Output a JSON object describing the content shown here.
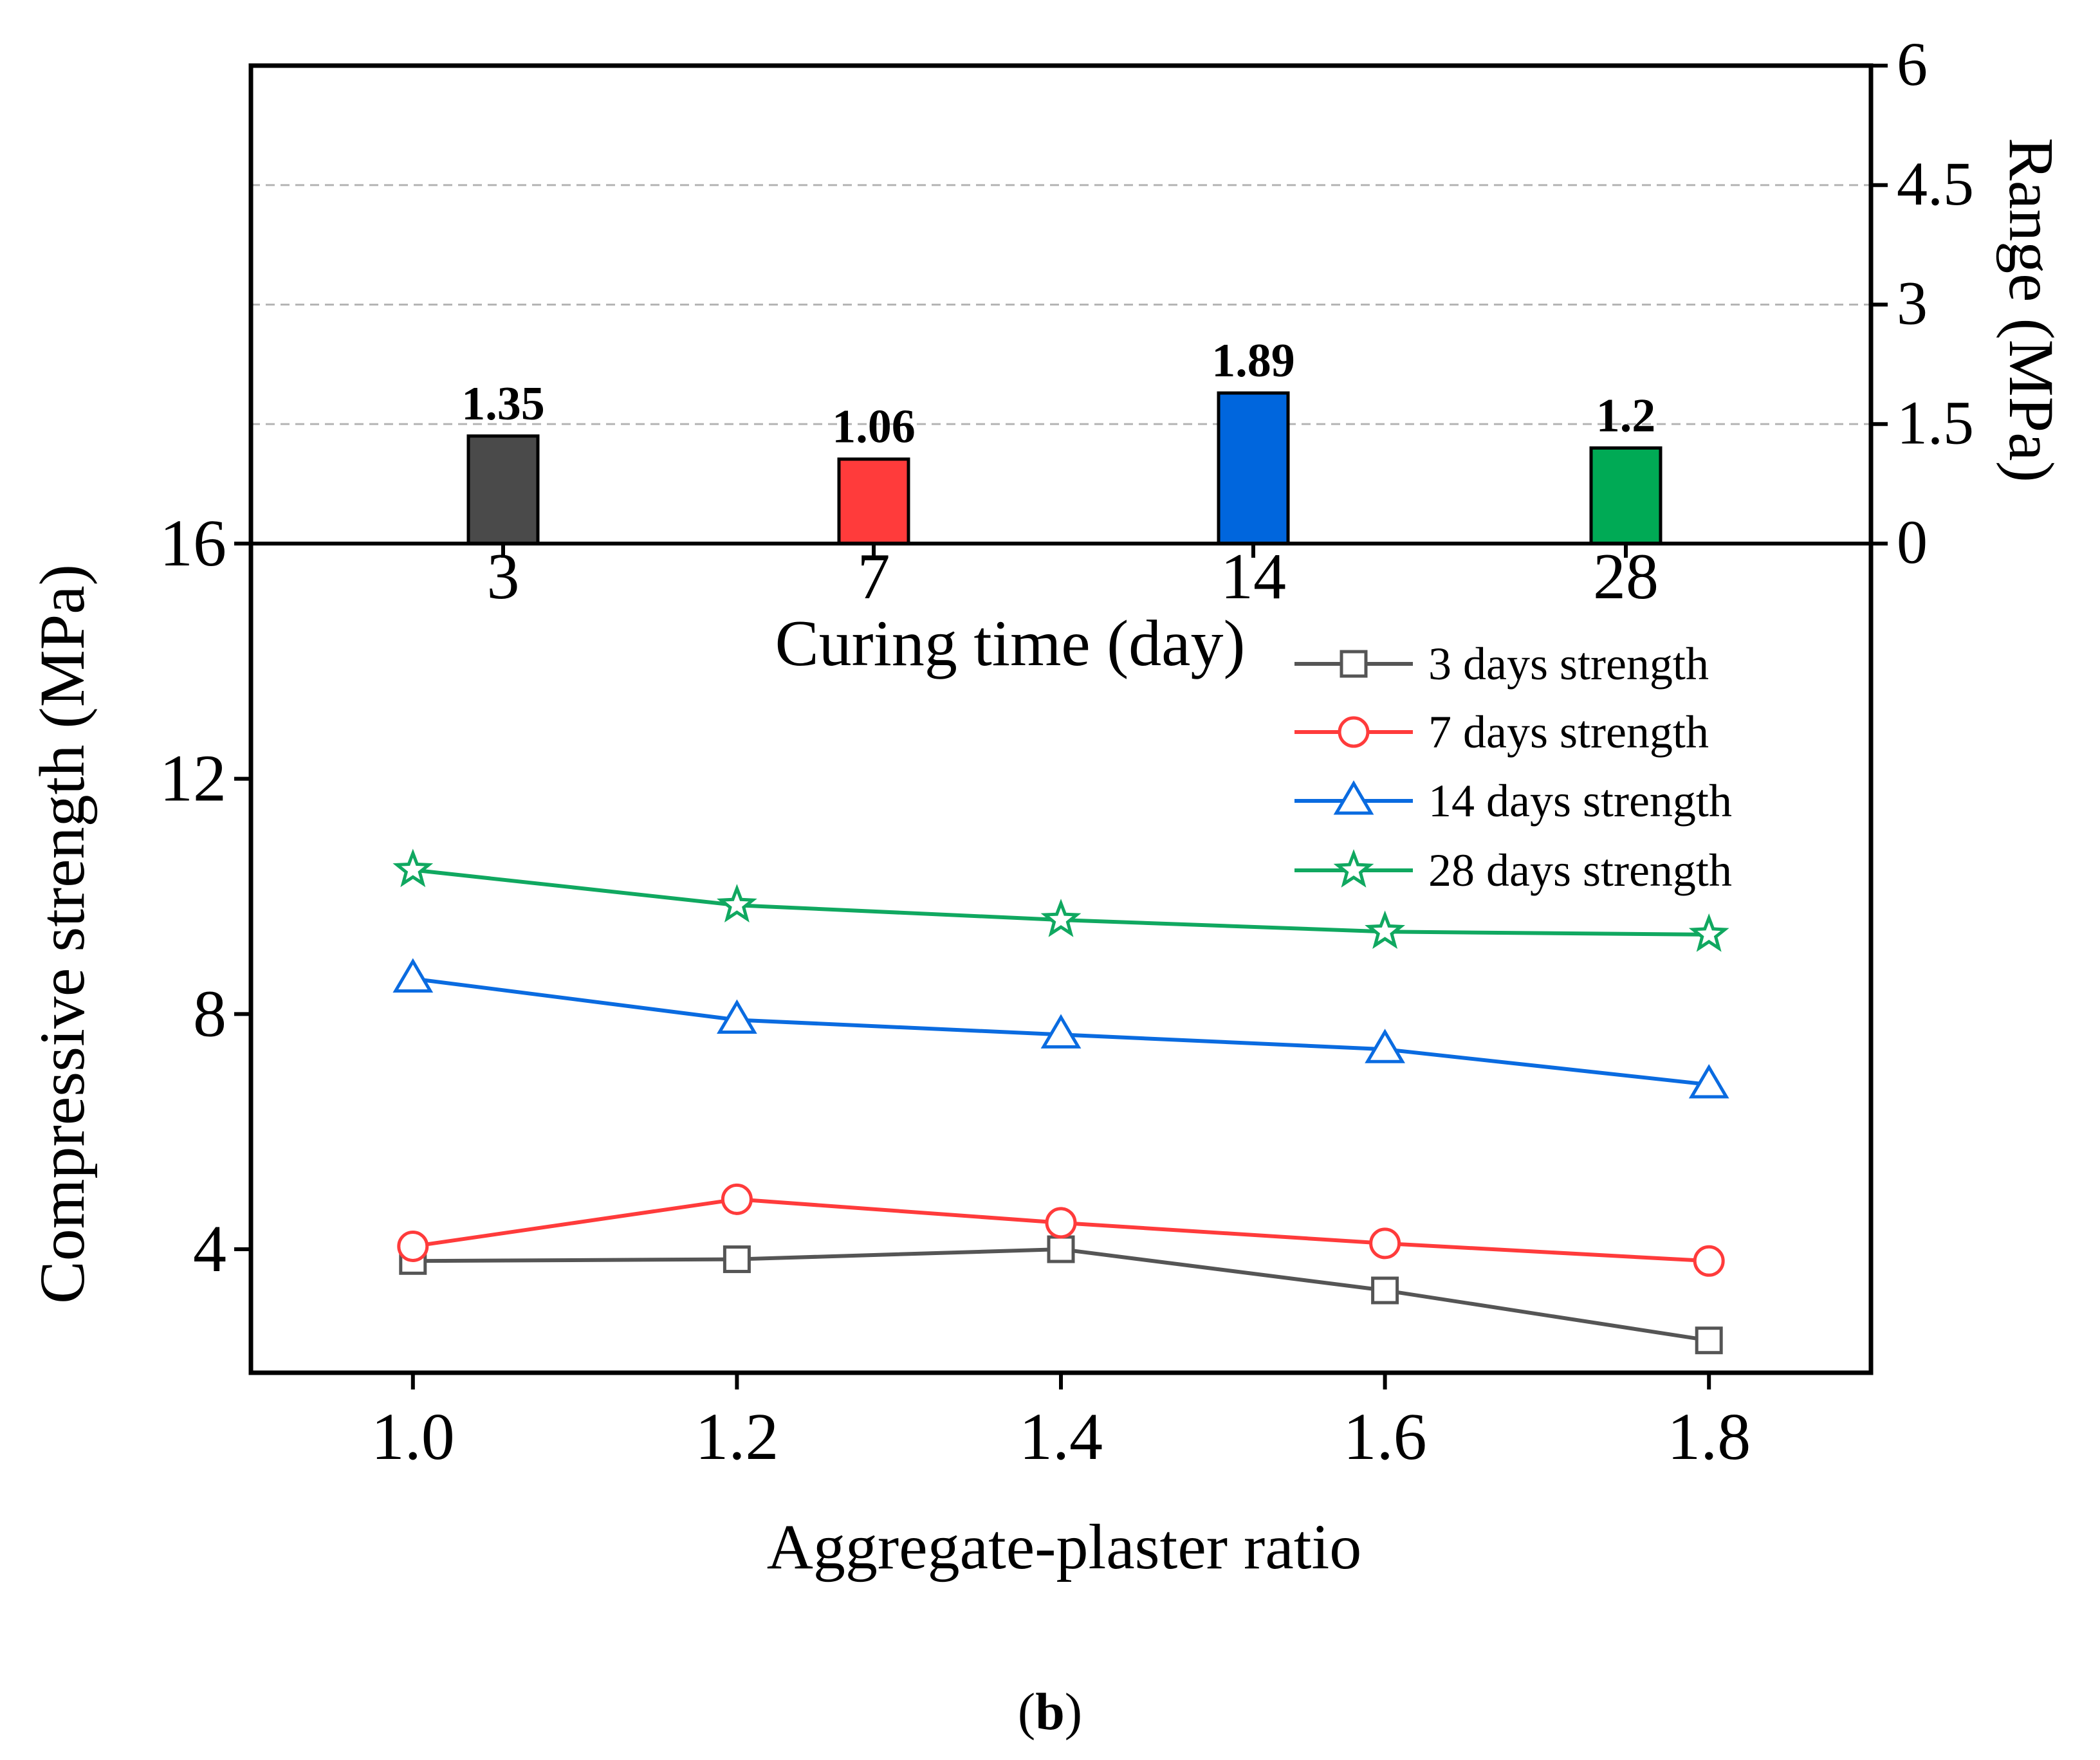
{
  "figure_label": "b",
  "colors": {
    "s3": "#555555",
    "s7": "#ff3b3b",
    "s14": "#0a6be0",
    "s28": "#10a860",
    "bar3": "#4a4a4a",
    "bar7": "#ff3b3b",
    "bar14": "#0066dd",
    "bar28": "#00aa55"
  },
  "chart_data": [
    {
      "type": "bar",
      "title": "",
      "xlabel": "Curing time (day)",
      "ylabel": "Range (MPa)",
      "categories": [
        "3",
        "7",
        "14",
        "28"
      ],
      "values": [
        1.35,
        1.06,
        1.89,
        1.2
      ],
      "value_labels": [
        "1.35",
        "1.06",
        "1.89",
        "1.2"
      ],
      "ylim": [
        0,
        6
      ],
      "yticks": [
        0,
        1.5,
        3,
        4.5,
        6
      ],
      "ytick_labels": [
        "0",
        "1.5",
        "3",
        "4.5",
        "6"
      ],
      "grid": "dashed horizontal at 1.5, 3, 4.5",
      "axis_side": "right"
    },
    {
      "type": "line",
      "title": "",
      "xlabel": "Aggregate-plaster ratio",
      "ylabel": "Compressive strength (MPa)",
      "x": [
        1.0,
        1.2,
        1.4,
        1.6,
        1.8
      ],
      "xtick_labels": [
        "1.0",
        "1.2",
        "1.4",
        "1.6",
        "1.8"
      ],
      "xlim": [
        0.9,
        1.9
      ],
      "ylim": [
        1.9,
        16
      ],
      "yticks": [
        4,
        8,
        12,
        16
      ],
      "ytick_labels": [
        "4",
        "8",
        "12",
        "16"
      ],
      "legend_position": "top-right",
      "series": [
        {
          "name": "3 days strength",
          "marker": "square",
          "values": [
            3.8,
            3.83,
            4.0,
            3.3,
            2.45
          ]
        },
        {
          "name": "7 days strength",
          "marker": "circle",
          "values": [
            4.05,
            4.85,
            4.45,
            4.1,
            3.8
          ]
        },
        {
          "name": "14 days strength",
          "marker": "triangle",
          "values": [
            8.6,
            7.9,
            7.65,
            7.4,
            6.8
          ]
        },
        {
          "name": "28 days strength",
          "marker": "star",
          "values": [
            10.45,
            9.85,
            9.6,
            9.4,
            9.35
          ]
        }
      ]
    }
  ]
}
